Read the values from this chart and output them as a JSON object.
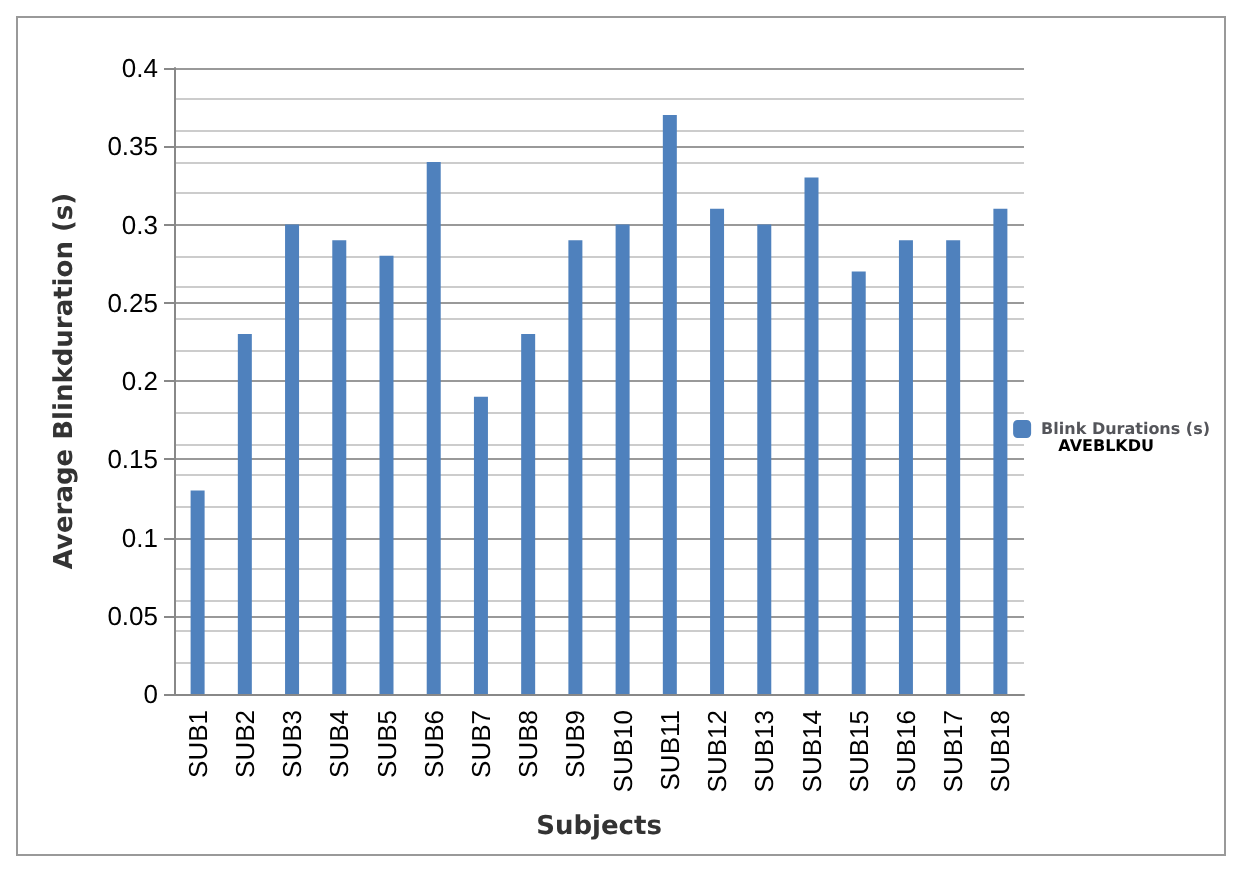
{
  "chart_data": {
    "type": "bar",
    "xlabel": "Subjects",
    "ylabel": "Average Blinkduration (s)",
    "categories": [
      "SUB1",
      "SUB2",
      "SUB3",
      "SUB4",
      "SUB5",
      "SUB6",
      "SUB7",
      "SUB8",
      "SUB9",
      "SUB10",
      "SUB11",
      "SUB12",
      "SUB13",
      "SUB14",
      "SUB15",
      "SUB16",
      "SUB17",
      "SUB18"
    ],
    "series": [
      {
        "name": "Blink Durations (s)",
        "color": "#4f81bd",
        "values": [
          0.13,
          0.23,
          0.3,
          0.29,
          0.28,
          0.34,
          0.19,
          0.23,
          0.29,
          0.3,
          0.37,
          0.31,
          0.3,
          0.33,
          0.27,
          0.29,
          0.29,
          0.31
        ]
      }
    ],
    "ylim": [
      0,
      0.4
    ],
    "yticks": [
      0,
      0.05,
      0.1,
      0.15,
      0.2,
      0.25,
      0.3,
      0.35,
      0.4
    ],
    "grid": "y",
    "legend": "right",
    "annotations": [
      "AVEBLKDU"
    ]
  }
}
